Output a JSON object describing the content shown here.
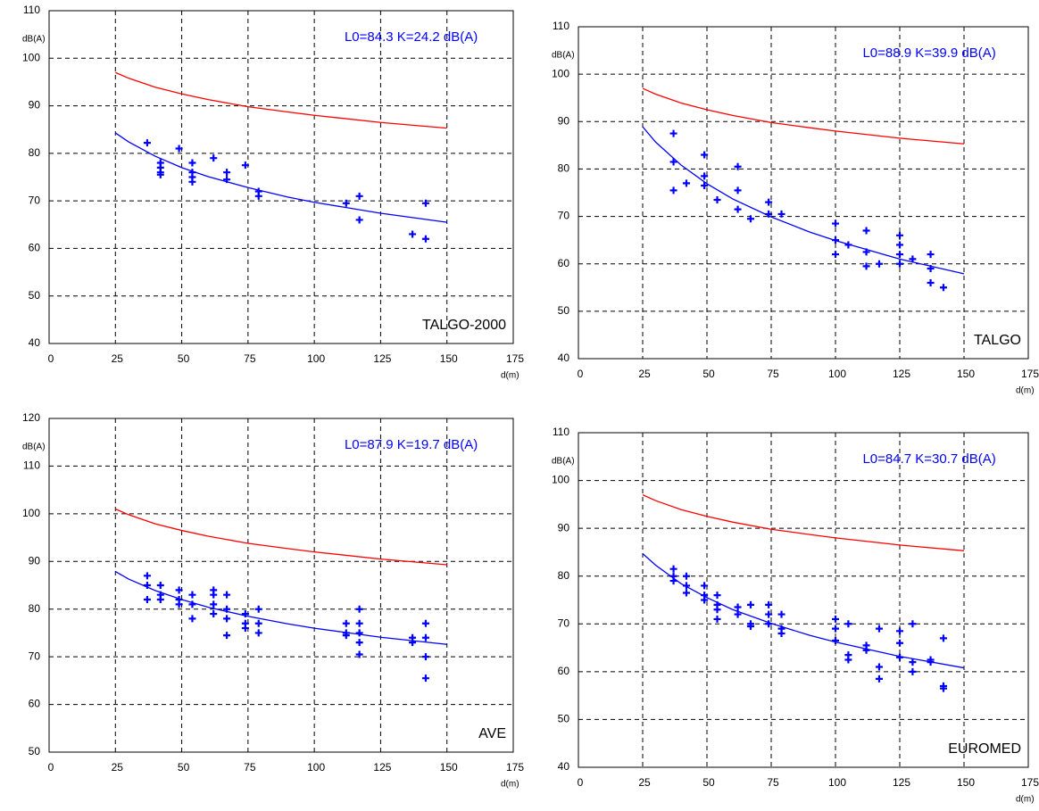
{
  "chart_data": [
    {
      "type": "scatter",
      "ylabel": "dB(A)",
      "xlabel": "d(m)",
      "annotation": "L0=84.3  K=24.2  dB(A)",
      "label": "TALGO-2000",
      "xlim": [
        0,
        175
      ],
      "ylim": [
        40,
        110
      ],
      "xticks": [
        0,
        25,
        50,
        75,
        100,
        125,
        150,
        175
      ],
      "yticks": [
        40,
        50,
        60,
        70,
        80,
        90,
        100,
        110
      ],
      "grid": true,
      "series": [
        {
          "type": "line",
          "color": "#ff0000",
          "x": [
            25,
            30,
            40,
            50,
            60,
            75,
            90,
            100,
            125,
            150
          ],
          "values": [
            97,
            95.8,
            93.9,
            92.5,
            91.3,
            89.8,
            88.7,
            88.0,
            86.5,
            85.3
          ]
        },
        {
          "type": "line",
          "color": "#0000ff",
          "x": [
            25,
            30,
            40,
            50,
            60,
            75,
            90,
            100,
            125,
            150
          ],
          "values": [
            84.3,
            82.4,
            79.4,
            77.0,
            75.1,
            72.8,
            70.8,
            69.7,
            67.4,
            65.5
          ]
        },
        {
          "type": "scatter",
          "color": "#0000ff",
          "x": [
            37,
            42,
            42,
            42,
            42,
            49,
            54,
            54,
            54,
            54,
            62,
            67,
            67,
            74,
            79,
            79,
            112,
            117,
            117,
            137,
            142,
            142
          ],
          "values": [
            82.2,
            78,
            77,
            76,
            75.5,
            81,
            78,
            76,
            75,
            74,
            79,
            76,
            74.5,
            77.5,
            72,
            71,
            69.5,
            71,
            66,
            63,
            69.5,
            62
          ]
        }
      ]
    },
    {
      "type": "scatter",
      "ylabel": "dB(A)",
      "xlabel": "d(m)",
      "annotation": "L0=88.9  K=39.9  dB(A)",
      "label": "TALGO",
      "xlim": [
        0,
        175
      ],
      "ylim": [
        40,
        110
      ],
      "xticks": [
        0,
        25,
        50,
        75,
        100,
        125,
        150,
        175
      ],
      "yticks": [
        40,
        50,
        60,
        70,
        80,
        90,
        100,
        110
      ],
      "grid": true,
      "series": [
        {
          "type": "line",
          "color": "#ff0000",
          "x": [
            25,
            30,
            40,
            50,
            60,
            75,
            90,
            100,
            125,
            150
          ],
          "values": [
            97,
            95.8,
            93.9,
            92.5,
            91.3,
            89.8,
            88.7,
            88.0,
            86.5,
            85.3
          ]
        },
        {
          "type": "line",
          "color": "#0000ff",
          "x": [
            25,
            30,
            40,
            50,
            60,
            75,
            90,
            100,
            125,
            150
          ],
          "values": [
            88.9,
            85.7,
            80.8,
            76.9,
            73.7,
            69.9,
            66.7,
            64.9,
            61.0,
            57.9
          ]
        },
        {
          "type": "scatter",
          "color": "#0000ff",
          "x": [
            37,
            37,
            37,
            42,
            49,
            49,
            49,
            54,
            62,
            62,
            62,
            67,
            74,
            74,
            79,
            100,
            100,
            100,
            105,
            112,
            112,
            112,
            117,
            125,
            125,
            125,
            125,
            130,
            137,
            137,
            137,
            142
          ],
          "values": [
            87.5,
            81.5,
            75.5,
            77,
            83,
            78.5,
            76.5,
            73.5,
            80.5,
            75.5,
            71.5,
            69.5,
            73,
            70.5,
            70.5,
            68.5,
            65,
            62,
            64,
            67,
            62.5,
            59.5,
            60,
            66,
            64,
            62,
            60,
            61,
            62,
            59,
            56,
            55
          ]
        }
      ]
    },
    {
      "type": "scatter",
      "ylabel": "dB(A)",
      "xlabel": "d(m)",
      "annotation": "L0=87.9  K=19.7  dB(A)",
      "label": "AVE",
      "xlim": [
        0,
        175
      ],
      "ylim": [
        50,
        120
      ],
      "xticks": [
        0,
        25,
        50,
        75,
        100,
        125,
        150,
        175
      ],
      "yticks": [
        50,
        60,
        70,
        80,
        90,
        100,
        110,
        120
      ],
      "grid": true,
      "series": [
        {
          "type": "line",
          "color": "#ff0000",
          "x": [
            25,
            30,
            40,
            50,
            60,
            75,
            90,
            100,
            125,
            150
          ],
          "values": [
            101,
            99.8,
            97.9,
            96.5,
            95.3,
            93.8,
            92.7,
            92.0,
            90.5,
            89.3
          ]
        },
        {
          "type": "line",
          "color": "#0000ff",
          "x": [
            25,
            30,
            40,
            50,
            60,
            75,
            90,
            100,
            125,
            150
          ],
          "values": [
            87.9,
            86.3,
            83.9,
            82.0,
            80.4,
            78.5,
            76.9,
            76.0,
            74.1,
            72.6
          ]
        },
        {
          "type": "scatter",
          "color": "#0000ff",
          "x": [
            37,
            37,
            37,
            42,
            42,
            42,
            49,
            49,
            49,
            54,
            54,
            54,
            62,
            62,
            62,
            62,
            67,
            67,
            67,
            67,
            74,
            74,
            74,
            79,
            79,
            79,
            112,
            112,
            112,
            117,
            117,
            117,
            117,
            117,
            137,
            137,
            142,
            142,
            142,
            142
          ],
          "values": [
            87,
            85,
            82,
            85,
            83,
            82,
            84,
            82,
            81,
            83,
            81,
            78,
            84,
            83,
            81,
            79,
            83,
            80,
            78,
            74.5,
            79,
            77,
            76,
            80,
            77,
            75,
            77,
            75,
            74.5,
            80,
            77,
            75,
            73,
            70.5,
            74,
            73,
            77,
            74,
            70,
            65.5
          ]
        }
      ]
    },
    {
      "type": "scatter",
      "ylabel": "dB(A)",
      "xlabel": "d(m)",
      "annotation": "L0=84.7  K=30.7  dB(A)",
      "label": "EUROMED",
      "xlim": [
        0,
        175
      ],
      "ylim": [
        40,
        110
      ],
      "xticks": [
        0,
        25,
        50,
        75,
        100,
        125,
        150,
        175
      ],
      "yticks": [
        40,
        50,
        60,
        70,
        80,
        90,
        100,
        110
      ],
      "grid": true,
      "series": [
        {
          "type": "line",
          "color": "#ff0000",
          "x": [
            25,
            30,
            40,
            50,
            60,
            75,
            90,
            100,
            125,
            150
          ],
          "values": [
            97,
            95.8,
            93.9,
            92.5,
            91.3,
            89.8,
            88.7,
            88.0,
            86.5,
            85.3
          ]
        },
        {
          "type": "line",
          "color": "#0000ff",
          "x": [
            25,
            30,
            40,
            50,
            60,
            75,
            90,
            100,
            125,
            150
          ],
          "values": [
            84.7,
            82.3,
            78.4,
            75.5,
            73.0,
            70.1,
            67.6,
            66.2,
            63.2,
            60.8
          ]
        },
        {
          "type": "scatter",
          "color": "#0000ff",
          "x": [
            37,
            37,
            37,
            42,
            42,
            42,
            49,
            49,
            49,
            54,
            54,
            54,
            54,
            62,
            62,
            67,
            67,
            67,
            74,
            74,
            74,
            79,
            79,
            79,
            100,
            100,
            100,
            105,
            105,
            105,
            112,
            112,
            117,
            117,
            117,
            125,
            125,
            125,
            130,
            130,
            130,
            137,
            137,
            142,
            142,
            142
          ],
          "values": [
            81.5,
            80,
            79,
            80,
            78,
            76.5,
            78,
            76,
            75,
            76,
            74,
            73,
            71,
            73.5,
            72,
            74,
            70,
            69.5,
            74,
            72,
            70,
            72,
            69,
            68,
            71,
            69,
            66.5,
            70,
            63.5,
            62.5,
            65.5,
            64.5,
            69,
            61,
            58.5,
            68.5,
            66,
            63,
            70,
            62,
            60,
            62.5,
            62,
            67,
            57,
            56.5
          ]
        }
      ]
    }
  ]
}
